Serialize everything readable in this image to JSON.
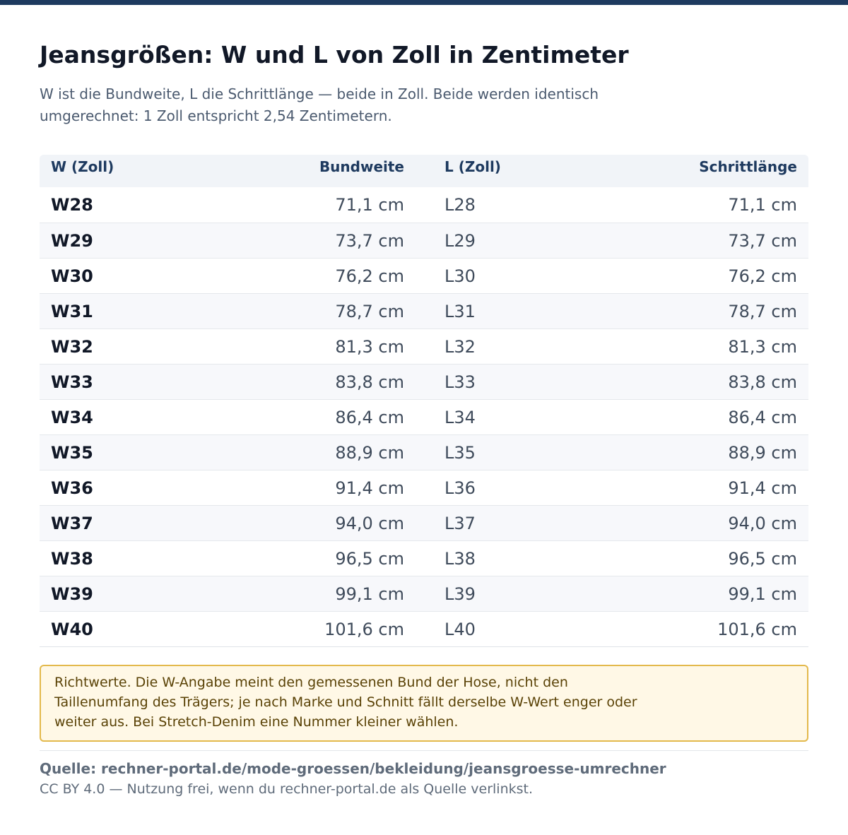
{
  "title": "Jeansgrößen: W und L von Zoll in Zentimeter",
  "subtitle": "W ist die Bundweite, L die Schrittlänge — beide in Zoll. Beide werden identisch umgerechnet: 1 Zoll entspricht 2,54 Zentimetern.",
  "table": {
    "headers": [
      "W (Zoll)",
      "Bundweite",
      "L (Zoll)",
      "Schrittlänge"
    ],
    "rows": [
      [
        "W28",
        "71,1 cm",
        "L28",
        "71,1 cm"
      ],
      [
        "W29",
        "73,7 cm",
        "L29",
        "73,7 cm"
      ],
      [
        "W30",
        "76,2 cm",
        "L30",
        "76,2 cm"
      ],
      [
        "W31",
        "78,7 cm",
        "L31",
        "78,7 cm"
      ],
      [
        "W32",
        "81,3 cm",
        "L32",
        "81,3 cm"
      ],
      [
        "W33",
        "83,8 cm",
        "L33",
        "83,8 cm"
      ],
      [
        "W34",
        "86,4 cm",
        "L34",
        "86,4 cm"
      ],
      [
        "W35",
        "88,9 cm",
        "L35",
        "88,9 cm"
      ],
      [
        "W36",
        "91,4 cm",
        "L36",
        "91,4 cm"
      ],
      [
        "W37",
        "94,0 cm",
        "L37",
        "94,0 cm"
      ],
      [
        "W38",
        "96,5 cm",
        "L38",
        "96,5 cm"
      ],
      [
        "W39",
        "99,1 cm",
        "L39",
        "99,1 cm"
      ],
      [
        "W40",
        "101,6 cm",
        "L40",
        "101,6 cm"
      ]
    ]
  },
  "note": "Richtwerte. Die W-Angabe meint den gemessenen Bund der Hose, nicht den Taillenumfang des Trägers; je nach Marke und Schnitt fällt derselbe W-Wert enger oder weiter aus. Bei Stretch-Denim eine Nummer kleiner wählen.",
  "source": "Quelle: rechner-portal.de/mode-groessen/bekleidung/jeansgroesse-umrechner",
  "license": "CC BY 4.0 — Nutzung frei, wenn du rechner-portal.de als Quelle verlinkst.",
  "colors": {
    "accent": "#1e3a5f",
    "note_border": "#e3b94c",
    "note_background": "#fff8e6"
  }
}
